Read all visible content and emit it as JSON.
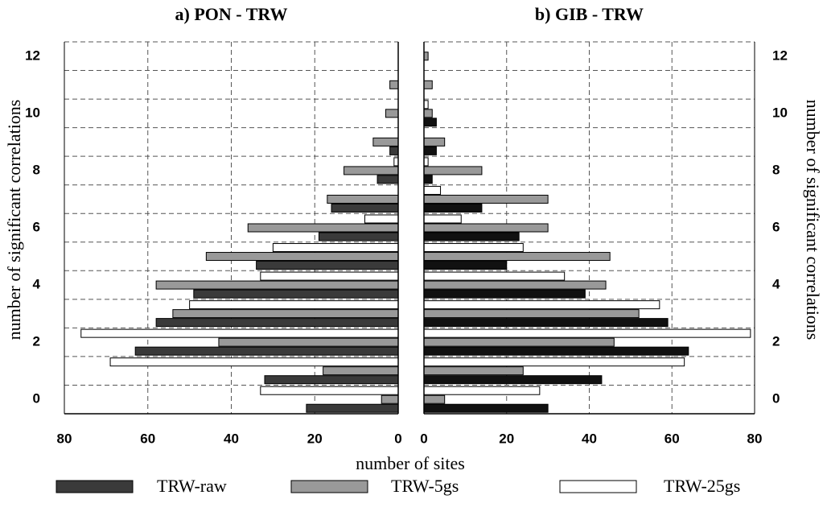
{
  "chart_data": [
    {
      "type": "barh",
      "title": "a) PON - TRW",
      "y_label": "number of significant correlations",
      "categories": [
        0,
        null,
        2,
        null,
        4,
        null,
        6,
        null,
        8,
        null,
        10,
        null,
        12
      ],
      "xlim": [
        80,
        0
      ],
      "xticks": [
        0,
        20,
        40,
        60,
        80
      ],
      "grid": true,
      "y_axis_side": "left",
      "series": [
        {
          "name": "TRW-raw",
          "color": "#3a3a3a",
          "values": [
            22,
            32,
            63,
            58,
            49,
            34,
            19,
            16,
            5,
            2,
            0,
            0,
            0
          ]
        },
        {
          "name": "TRW-5gs",
          "color": "#999999",
          "values": [
            4,
            18,
            43,
            54,
            58,
            46,
            36,
            17,
            13,
            6,
            3,
            2,
            0
          ]
        },
        {
          "name": "TRW-25gs",
          "color": "#ffffff",
          "values": [
            33,
            69,
            76,
            50,
            33,
            30,
            8,
            0,
            1,
            0,
            0,
            0,
            0
          ]
        }
      ]
    },
    {
      "type": "barh",
      "title": "b) GIB - TRW",
      "y_label": "number of significant correlations",
      "categories": [
        0,
        null,
        2,
        null,
        4,
        null,
        6,
        null,
        8,
        null,
        10,
        null,
        12
      ],
      "xlim": [
        0,
        80
      ],
      "xticks": [
        0,
        20,
        40,
        60,
        80
      ],
      "grid": true,
      "y_axis_side": "right",
      "series": [
        {
          "name": "TRW-raw",
          "color": "#111111",
          "values": [
            30,
            43,
            64,
            59,
            39,
            20,
            23,
            14,
            2,
            3,
            3,
            0,
            0
          ]
        },
        {
          "name": "TRW-5gs",
          "color": "#999999",
          "values": [
            5,
            24,
            46,
            52,
            44,
            45,
            30,
            30,
            14,
            5,
            2,
            2,
            1
          ]
        },
        {
          "name": "TRW-25gs",
          "color": "#ffffff",
          "values": [
            28,
            63,
            79,
            57,
            34,
            24,
            9,
            4,
            1,
            0,
            1,
            0,
            0
          ]
        }
      ]
    }
  ],
  "x_label": "number of sites"
}
